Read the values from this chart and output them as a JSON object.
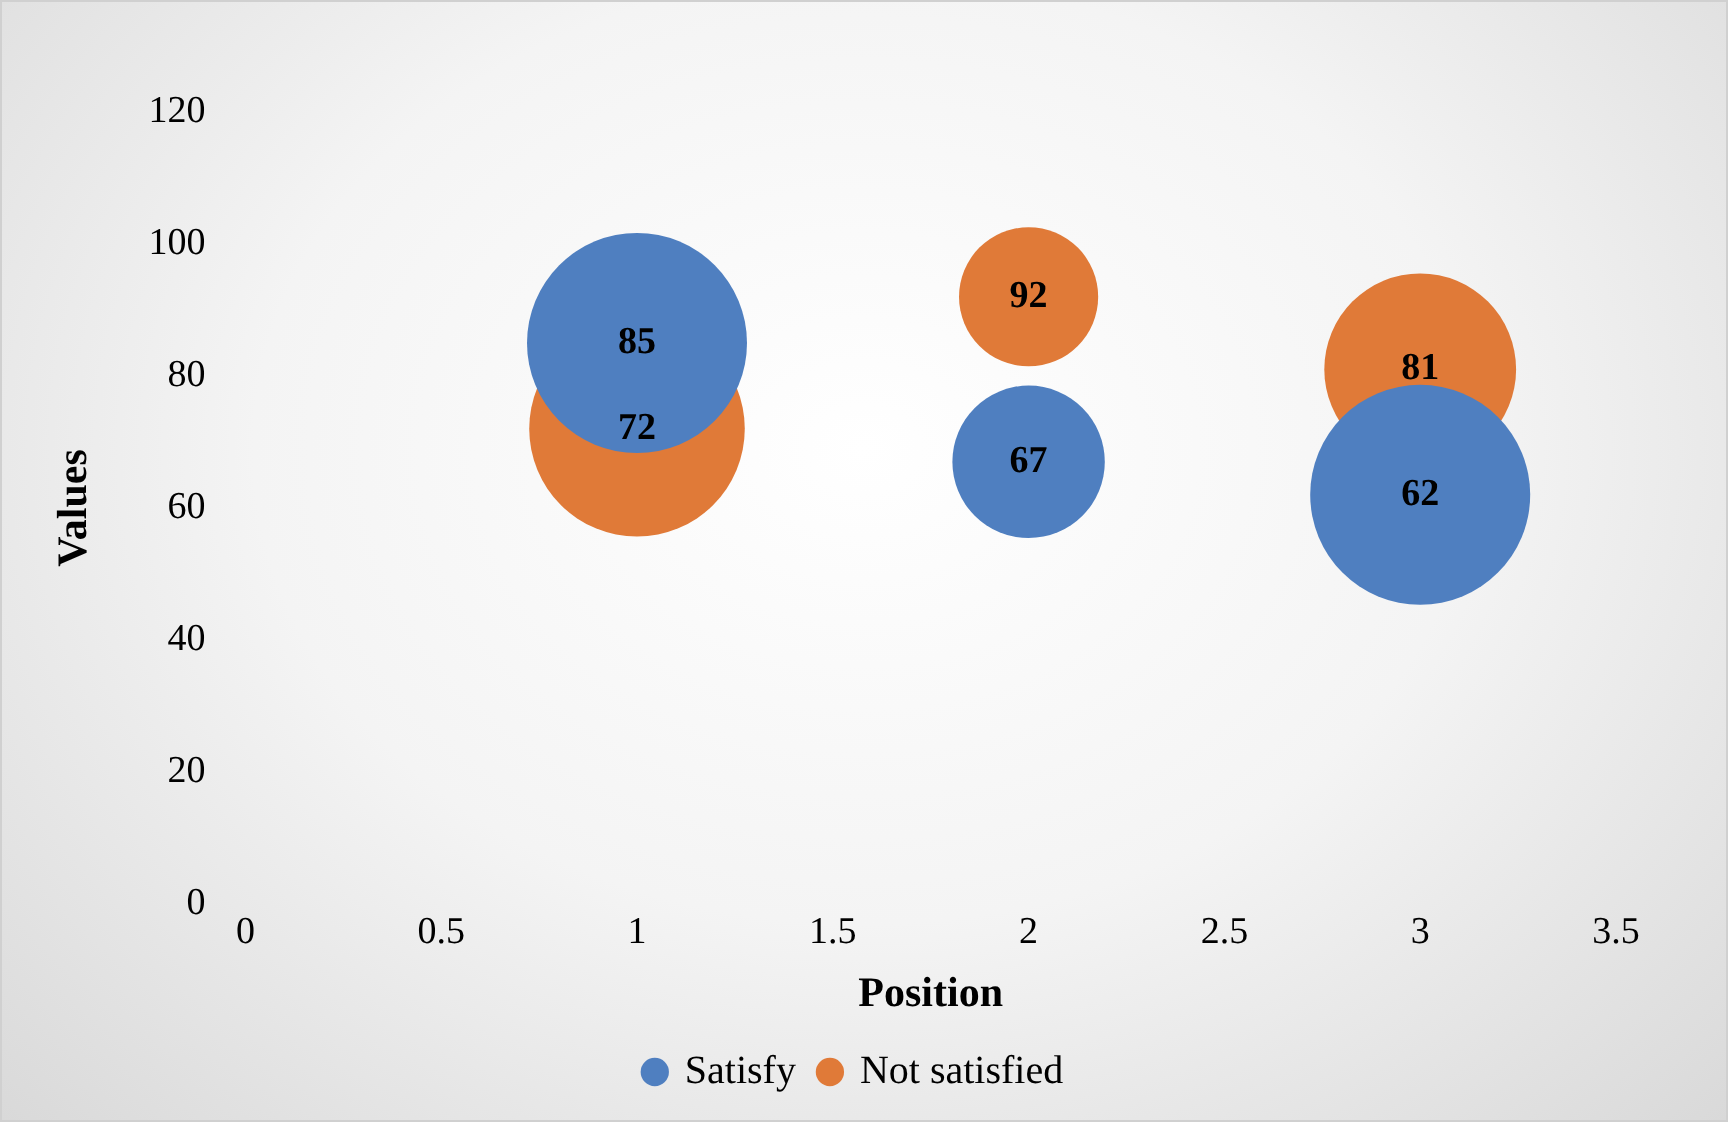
{
  "chart_data": {
    "type": "bubble",
    "xlabel": "Position",
    "ylabel": "Values",
    "x": [
      1,
      2,
      3
    ],
    "series": [
      {
        "name": "Satisfy",
        "color": "#4f7fc0",
        "values": [
          85,
          67,
          62
        ],
        "sizes": [
          1,
          0.48,
          1
        ]
      },
      {
        "name": "Not satisfied",
        "color": "#e07a38",
        "values": [
          72,
          92,
          81
        ],
        "sizes": [
          0.96,
          0.4,
          0.76
        ]
      }
    ],
    "xlim": [
      0,
      3.5
    ],
    "xticks": [
      0,
      0.5,
      1,
      1.5,
      2,
      2.5,
      3,
      3.5
    ],
    "ylim": [
      0,
      120
    ],
    "yticks": [
      0,
      20,
      40,
      60,
      80,
      100,
      120
    ],
    "grid": false,
    "legend": "bottom",
    "data_labels": true
  }
}
